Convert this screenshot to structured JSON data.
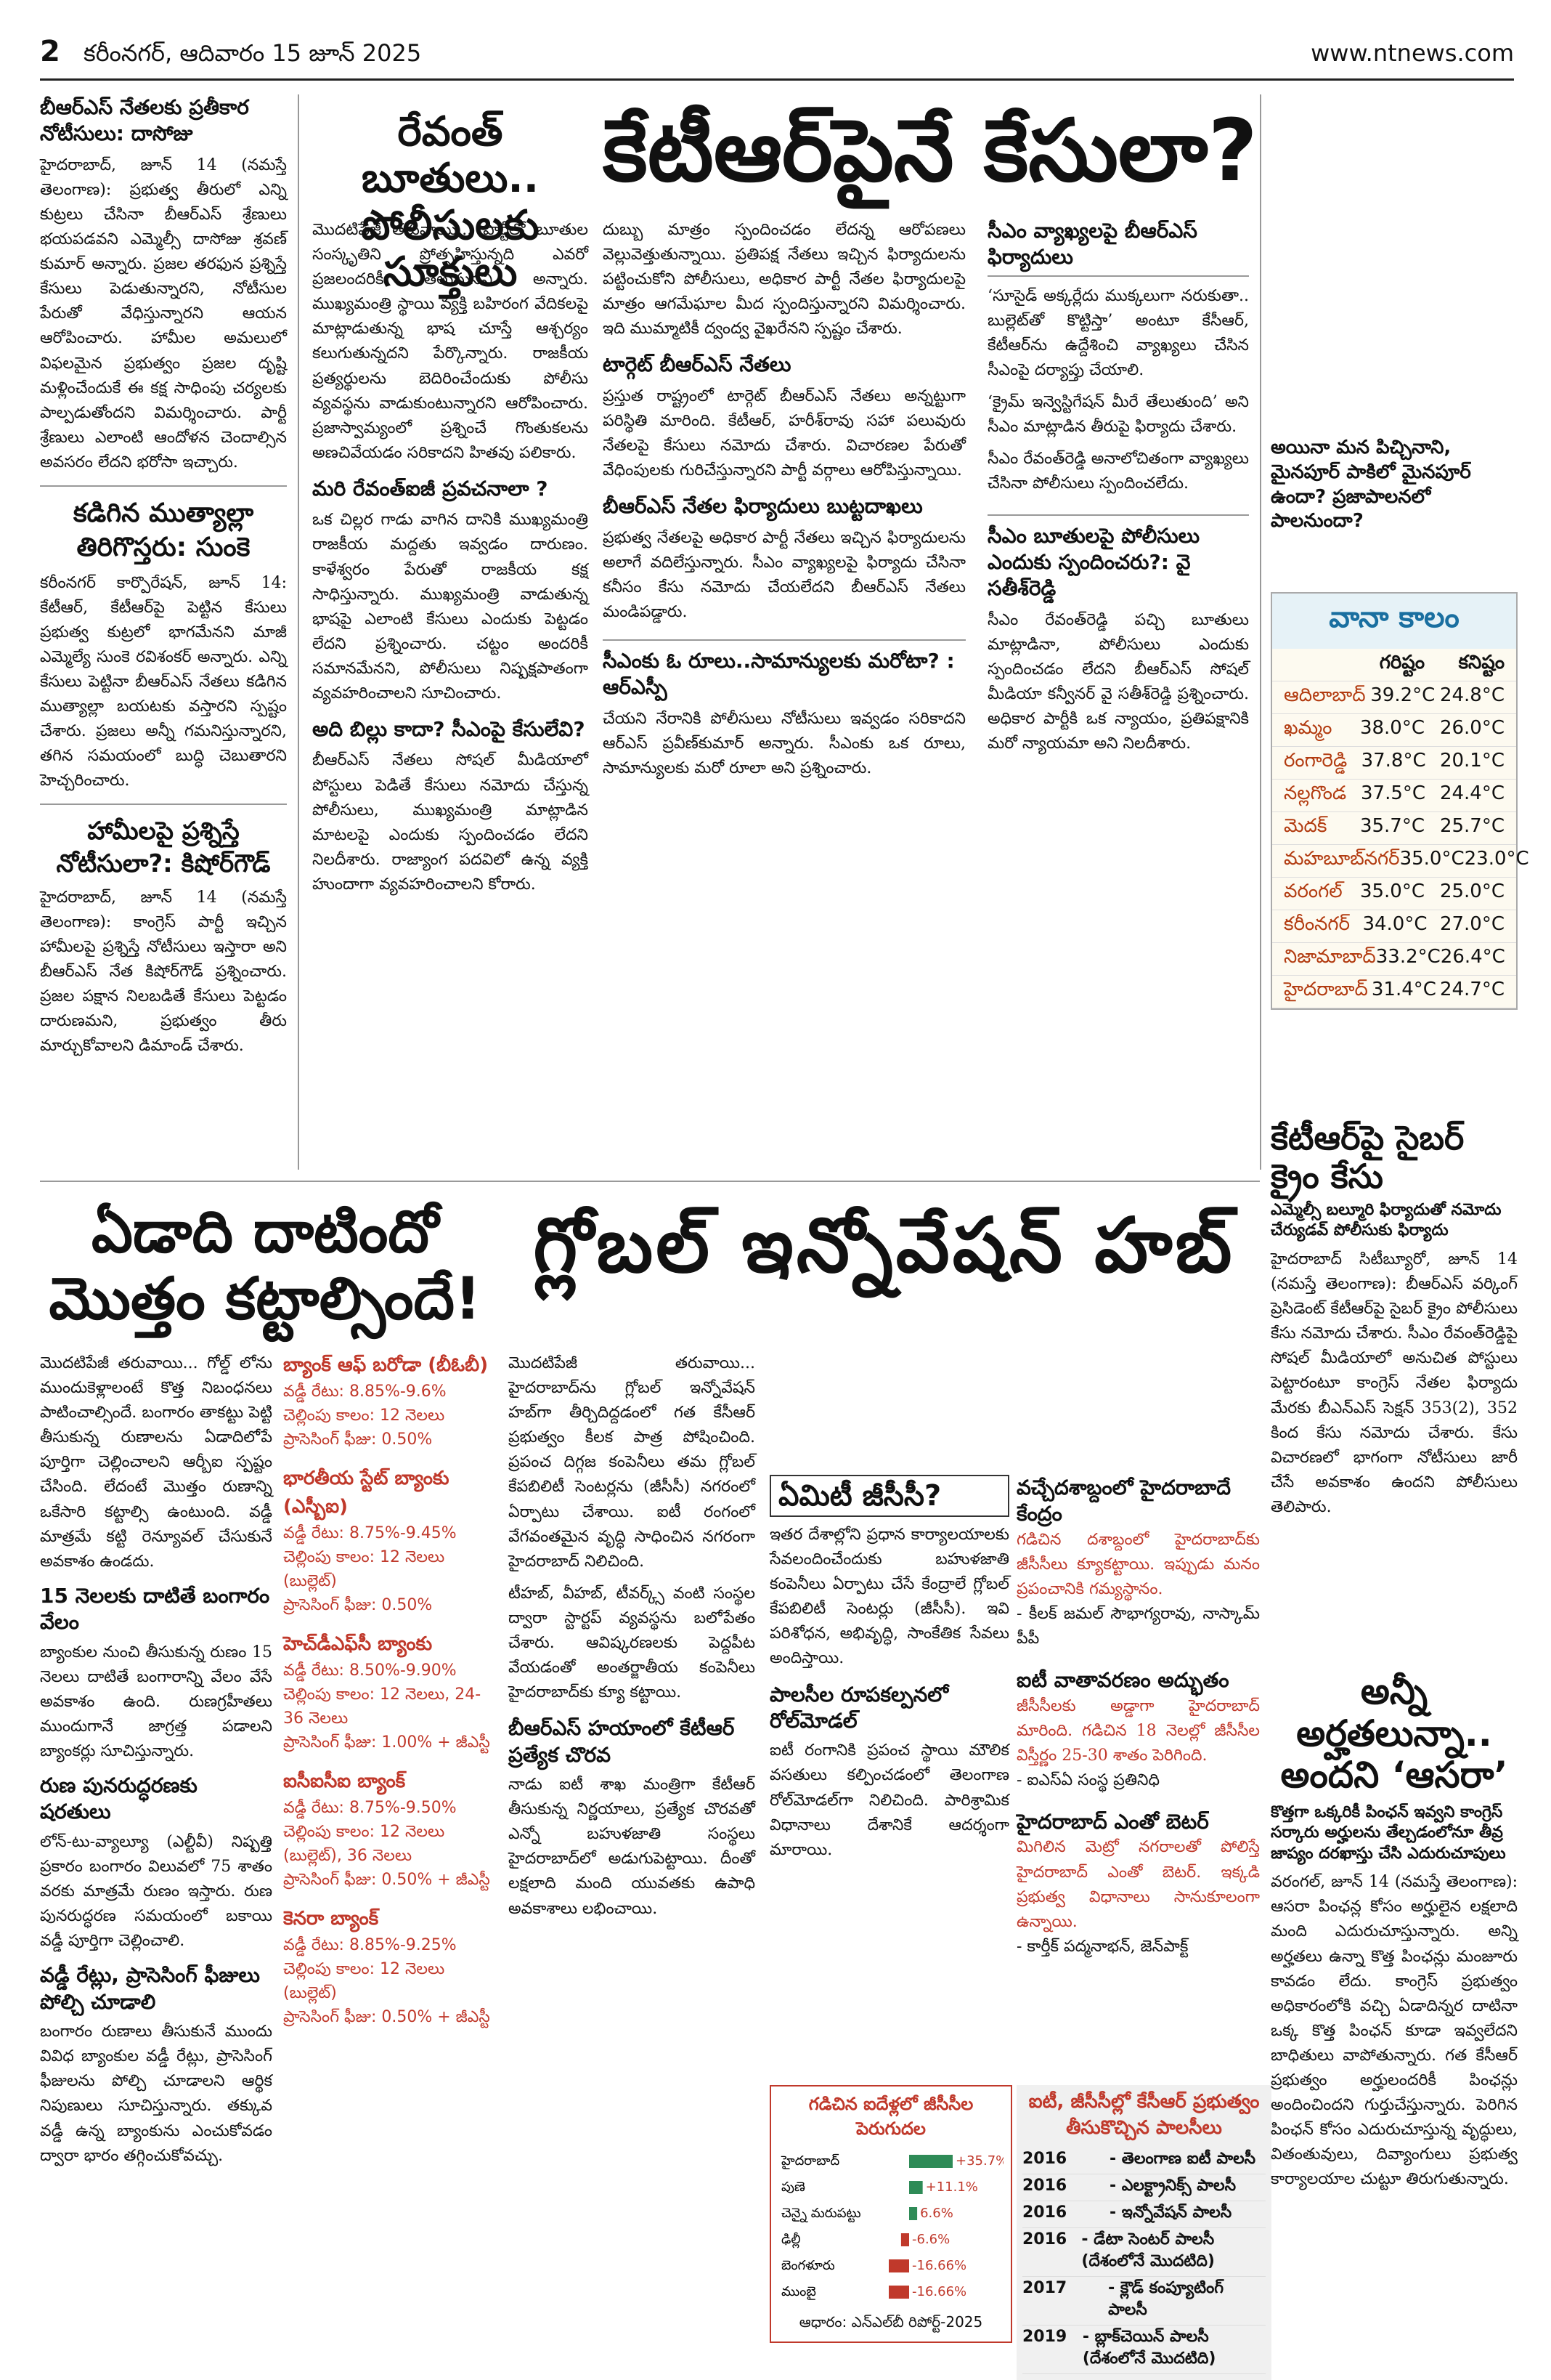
{
  "page": {
    "number": "2",
    "date_line": "కరీంనగర్, ఆదివారం 15 జూన్ 2025",
    "url": "www.ntnews.com"
  },
  "left_column": {
    "story1_title": "బీఆర్ఎస్ నేతలకు ప్రతీకార నోటీసులు: దాసోజు",
    "story1_text": "హైదరాబాద్, జూన్ 14 (నమస్తే తెలంగాణ): ప్రభుత్వ తీరులో ఎన్ని కుట్రలు చేసినా బీఆర్ఎస్ శ్రేణులు భయపడవని ఎమ్మెల్సీ దాసోజు శ్రవణ్ కుమార్ అన్నారు. ప్రజల తరఫున ప్రశ్నిస్తే కేసులు పెడుతున్నారని, నోటీసుల పేరుతో వేధిస్తున్నారని ఆయన ఆరోపించారు. హామీల అమలులో విఫలమైన ప్రభుత్వం ప్రజల దృష్టి మళ్లించేందుకే ఈ కక్ష సాధింపు చర్యలకు పాల్పడుతోందని విమర్శించారు. పార్టీ శ్రేణులు ఎలాంటి ఆందోళన చెందాల్సిన అవసరం లేదని భరోసా ఇచ్చారు.",
    "story2_title": "కడిగిన ముత్యాల్లా తిరిగొస్తరు: సుంకె",
    "story2_text": "కరీంనగర్ కార్పొరేషన్, జూన్ 14: కేటీఆర్, కేటీఆర్‌పై పెట్టిన కేసులు ప్రభుత్వ కుట్రలో భాగమేనని మాజీ ఎమ్మెల్యే సుంకె రవిశంకర్ అన్నారు. ఎన్ని కేసులు పెట్టినా బీఆర్ఎస్ నేతలు కడిగిన ముత్యాల్లా బయటకు వస్తారని స్పష్టం చేశారు. ప్రజలు అన్నీ గమనిస్తున్నారని, తగిన సమయంలో బుద్ధి చెబుతారని హెచ్చరించారు.",
    "story3_title": "హామీలపై ప్రశ్నిస్తే నోటీసులా?: కిషోర్‌గౌడ్",
    "story3_text": "హైదరాబాద్, జూన్ 14 (నమస్తే తెలంగాణ): కాంగ్రెస్ పార్టీ ఇచ్చిన హామీలపై ప్రశ్నిస్తే నోటీసులు ఇస్తారా అని బీఆర్ఎస్ నేత కిషోర్‌గౌడ్ ప్రశ్నించారు. ప్రజల పక్షాన నిలబడితే కేసులు పెట్టడం దారుణమని, ప్రభుత్వం తీరు మార్చుకోవాలని డిమాండ్ చేశారు."
  },
  "lead_story": {
    "kicker_line1": "రేవంత్ బూతులు..",
    "kicker_line2": "పోలీసులకు సూక్తులు",
    "headline": "కేటీఆర్‌పైనే కేసులా?",
    "text1": "మొదటిపేజీ తరువాయి... పార్టీలో బూతుల సంస్కృతిని ప్రోత్సహిస్తున్నది ఎవరో ప్రజలందరికీ తెలుసునని అన్నారు. ముఖ్యమంత్రి స్థాయి వ్యక్తి బహిరంగ వేదికలపై మాట్లాడుతున్న భాష చూస్తే ఆశ్చర్యం కలుగుతున్నదని పేర్కొన్నారు. రాజకీయ ప్రత్యర్థులను బెదిరించేందుకు పోలీసు వ్యవస్థను వాడుకుంటున్నారని ఆరోపించారు. ప్రజాస్వామ్యంలో ప్రశ్నించే గొంతుకలను అణచివేయడం సరికాదని హితవు పలికారు.",
    "subhead1": "మరి రేవంత్‌ఐజీ ప్రవచనాలా ?",
    "text2": "ఒక చిల్లర గాడు వాగిన దానికి ముఖ్యమంత్రి రాజకీయ మద్దతు ఇవ్వడం దారుణం. కాళేశ్వరం పేరుతో రాజకీయ కక్ష సాధిస్తున్నారు. ముఖ్యమంత్రి వాడుతున్న భాషపై ఎలాంటి కేసులు ఎందుకు పెట్టడం లేదని ప్రశ్నించారు. చట్టం అందరికీ సమానమేనని, పోలీసులు నిష్పక్షపాతంగా వ్యవహరించాలని సూచించారు.",
    "subhead2": "అది బిల్లు కాదా? సీఎంపై కేసులేవి?",
    "text3": "బీఆర్ఎస్ నేతలు సోషల్ మీడియాలో పోస్టులు పెడితే కేసులు నమోదు చేస్తున్న పోలీసులు, ముఖ్యమంత్రి మాట్లాడిన మాటలపై ఎందుకు స్పందించడం లేదని నిలదీశారు. రాజ్యాంగ పదవిలో ఉన్న వ్యక్తి హుందాగా వ్యవహరించాలని కోరారు.",
    "text4": "దుబ్బు మాత్రం స్పందించడం లేదన్న ఆరోపణలు వెల్లువెత్తుతున్నాయి. ప్రతిపక్ష నేతలు ఇచ్చిన ఫిర్యాదులను పట్టించుకోని పోలీసులు, అధికార పార్టీ నేతల ఫిర్యాదులపై మాత్రం ఆగమేఘాల మీద స్పందిస్తున్నారని విమర్శించారు. ఇది ముమ్మాటికీ ద్వంద్వ వైఖరేనని స్పష్టం చేశారు.",
    "subhead3": "టార్గెట్ బీఆర్ఎస్ నేతలు",
    "text5": "ప్రస్తుత రాష్ట్రంలో టార్గెట్ బీఆర్ఎస్ నేతలు అన్నట్టుగా పరిస్థితి మారింది. కేటీఆర్, హరీశ్‌రావు సహా పలువురు నేతలపై కేసులు నమోదు చేశారు. విచారణల పేరుతో వేధింపులకు గురిచేస్తున్నారని పార్టీ వర్గాలు ఆరోపిస్తున్నాయి.",
    "subhead4": "బీఆర్ఎస్ నేతల ఫిర్యాదులు బుట్టదాఖలు",
    "text6": "ప్రభుత్వ నేతలపై అధికార పార్టీ నేతలు ఇచ్చిన ఫిర్యాదులను అలాగే వదిలేస్తున్నారు. సీఎం వ్యాఖ్యలపై ఫిర్యాదు చేసినా కనీసం కేసు నమోదు చేయలేదని బీఆర్ఎస్ నేతలు మండిపడ్డారు."
  },
  "boxed_quotes": {
    "box1_title": "సీఎం వ్యాఖ్యలపై బీఆర్ఎస్ ఫిర్యాదులు",
    "box1_items": [
      "‘సూసైడ్ అక్కర్లేదు ముక్కలుగా నరుకుతా.. బుల్లెట్‌తో కొట్టిస్తా’ అంటూ కేసీఆర్, కేటీఆర్‌ను ఉద్దేశించి వ్యాఖ్యలు చేసిన సీఎంపై దర్యాప్తు చేయాలి.",
      "‘క్రైమ్ ఇన్వెస్టిగేషన్ మీరే తేలుతుంది’ అని సీఎం మాట్లాడిన తీరుపై ఫిర్యాదు చేశారు.",
      "సీఎం రేవంత్‌రెడ్డి అనాలోచితంగా వ్యాఖ్యలు చేసినా పోలీసులు స్పందించలేదు."
    ],
    "box2_title": "సీఎం బూతులపై పోలీసులు ఎందుకు స్పందించరు?: వై సతీశ్‌రెడ్డి",
    "box2_text": "సీఎం రేవంత్‌రెడ్డి పచ్చి బూతులు మాట్లాడినా, పోలీసులు ఎందుకు స్పందించడం లేదని బీఆర్ఎస్ సోషల్ మీడియా కన్వీనర్ వై సతీశ్‌రెడ్డి ప్రశ్నించారు. అధికార పార్టీకి ఒక న్యాయం, ప్రతిపక్షానికి మరో న్యాయమా అని నిలదీశారు.",
    "box3_title": "సీఎంకు ఓ రూలు..సామాన్యులకు మరోటా? : ఆర్ఎస్పీ",
    "box3_text": "చేయని నేరానికి పోలీసులు నోటీసులు ఇవ్వడం సరికాదని ఆర్ఎస్ ప్రవీణ్‌కుమార్ అన్నారు. సీఎంకు ఒక రూలు, సామాన్యులకు మరో రూలా అని ప్రశ్నించారు."
  },
  "side_story": {
    "question": "అయినా మన పిచ్చినాని, మైనపూర్ పాకిలో మైనపూర్ ఉందా? ప్రజాపాలనలో పాలనుందా?"
  },
  "weather": {
    "title": "వానా కాలం",
    "col_max": "గరిష్టం",
    "col_min": "కనిష్టం",
    "rows": [
      {
        "city": "ఆదిలాబాద్",
        "max": "39.2°C",
        "min": "24.8°C"
      },
      {
        "city": "ఖమ్మం",
        "max": "38.0°C",
        "min": "26.0°C"
      },
      {
        "city": "రంగారెడ్డి",
        "max": "37.8°C",
        "min": "20.1°C"
      },
      {
        "city": "నల్లగొండ",
        "max": "37.5°C",
        "min": "24.4°C"
      },
      {
        "city": "మెదక్",
        "max": "35.7°C",
        "min": "25.7°C"
      },
      {
        "city": "మహబూబ్‌నగర్",
        "max": "35.0°C",
        "min": "23.0°C"
      },
      {
        "city": "వరంగల్",
        "max": "35.0°C",
        "min": "25.0°C"
      },
      {
        "city": "కరీంనగర్",
        "max": "34.0°C",
        "min": "27.0°C"
      },
      {
        "city": "నిజామాబాద్",
        "max": "33.2°C",
        "min": "26.4°C"
      },
      {
        "city": "హైదరాబాద్",
        "max": "31.4°C",
        "min": "24.7°C"
      }
    ]
  },
  "cyber_story": {
    "headline": "కేటీఆర్‌పై సైబర్ క్రైం కేసు",
    "deck": "ఎమ్మెల్సీ బల్మూరి ఫిర్యాదుతో నమోదు చేర్యుడవ్ పోలీసుకు ఫిర్యాదు",
    "text": "హైదరాబాద్ సిటీబ్యూరో, జూన్ 14 (నమస్తే తెలంగాణ): బీఆర్ఎస్ వర్కింగ్ ప్రెసిడెంట్ కేటీఆర్‌పై సైబర్ క్రైం పోలీసులు కేసు నమోదు చేశారు. సీఎం రేవంత్‌రెడ్డిపై సోషల్ మీడియాలో అనుచిత పోస్టులు పెట్టారంటూ కాంగ్రెస్ నేతల ఫిర్యాదు మేరకు బీఎన్ఎస్ సెక్షన్ 353(2), 352 కింద కేసు నమోదు చేశారు. కేసు విచారణలో భాగంగా నోటీసులు జారీ చేసే అవకాశం ఉందని పోలీసులు తెలిపారు."
  },
  "aasara_story": {
    "headline_line1": "అన్నీ అర్హతలున్నా..",
    "headline_line2": "అందని ‘ఆసరా’",
    "deck": "కొత్తగా ఒక్కరికీ పింఛన్ ఇవ్వని కాంగ్రెస్ సర్కారు అర్హులను తేల్చడంలోనూ తీవ్ర జాప్యం దరఖాస్తు చేసి ఎదురుచూపులు",
    "text": "వరంగల్, జూన్ 14 (నమస్తే తెలంగాణ): ఆసరా పింఛన్ల కోసం అర్హులైన లక్షలాది మంది ఎదురుచూస్తున్నారు. అన్ని అర్హతలు ఉన్నా కొత్త పింఛన్లు మంజూరు కావడం లేదు. కాంగ్రెస్ ప్రభుత్వం అధికారంలోకి వచ్చి ఏడాదిన్నర దాటినా ఒక్క కొత్త పింఛన్ కూడా ఇవ్వలేదని బాధితులు వాపోతున్నారు. గత కేసీఆర్ ప్రభుత్వం అర్హులందరికీ పింఛన్లు అందించిందని గుర్తుచేస్తున్నారు. పెరిగిన పింఛన్ కోసం ఎదురుచూస్తున్న వృద్ధులు, వితంతువులు, దివ్యాంగులు ప్రభుత్వ కార్యాలయాల చుట్టూ తిరుగుతున్నారు."
  },
  "loan_story": {
    "headline_line1": "ఏడాది దాటిందో",
    "headline_line2": "మొత్తం కట్టాల్సిందే!",
    "text": "మొదటిపేజీ తరువాయి... గోల్డ్ లోను ముందుకెళ్లాలంటే కొత్త నిబంధనలు పాటించాల్సిందే. బంగారం తాకట్టు పెట్టి తీసుకున్న రుణాలను ఏడాదిలోపే పూర్తిగా చెల్లించాలని ఆర్బీఐ స్పష్టం చేసింది. లేదంటే మొత్తం రుణాన్ని ఒకేసారి కట్టాల్సి ఉంటుంది. వడ్డీ మాత్రమే కట్టి రెన్యూవల్ చేసుకునే అవకాశం ఉండదు.",
    "subhead1": "15 నెలలకు దాటితే బంగారం వేలం",
    "text2": "బ్యాంకుల నుంచి తీసుకున్న రుణం 15 నెలలు దాటితే బంగారాన్ని వేలం వేసే అవకాశం ఉంది. రుణగ్రహీతలు ముందుగానే జాగ్రత్త పడాలని బ్యాంకర్లు సూచిస్తున్నారు.",
    "subhead2": "రుణ పునరుద్ధరణకు షరతులు",
    "text3": "లోన్-టు-వ్యాల్యూ (ఎల్టీవీ) నిష్పత్తి ప్రకారం బంగారం విలువలో 75 శాతం వరకు మాత్రమే రుణం ఇస్తారు. రుణ పునరుద్ధరణ సమయంలో బకాయి వడ్డీ పూర్తిగా చెల్లించాలి.",
    "subhead3": "వడ్డీ రేట్లు, ప్రాసెసింగ్ ఫీజులు పోల్చి చూడాలి",
    "text4": "బంగారం రుణాలు తీసుకునే ముందు వివిధ బ్యాంకుల వడ్డీ రేట్లు, ప్రాసెసింగ్ ఫీజులను పోల్చి చూడాలని ఆర్థిక నిపుణులు సూచిస్తున్నారు. తక్కువ వడ్డీ ఉన్న బ్యాంకును ఎంచుకోవడం ద్వారా భారం తగ్గించుకోవచ్చు."
  },
  "bank_rates": [
    {
      "bank": "బ్యాంక్ ఆఫ్ బరోడా (బీఓబీ)",
      "rate": "వడ్డీ రేటు: 8.85%-9.6%",
      "tenure": "చెల్లింపు కాలం: 12 నెలలు",
      "fee": "ప్రాసెసింగ్ ఫీజు: 0.50%"
    },
    {
      "bank": "భారతీయ స్టేట్ బ్యాంకు (ఎస్బీఐ)",
      "rate": "వడ్డీ రేటు: 8.75%-9.45%",
      "tenure": "చెల్లింపు కాలం: 12 నెలలు (బుల్లెట్)",
      "fee": "ప్రాసెసింగ్ ఫీజు: 0.50%"
    },
    {
      "bank": "హెచ్‌డీఎఫ్‌సీ బ్యాంకు",
      "rate": "వడ్డీ రేటు: 8.50%-9.90%",
      "tenure": "చెల్లింపు కాలం: 12 నెలలు, 24-36 నెలలు",
      "fee": "ప్రాసెసింగ్ ఫీజు: 1.00% + జీఎస్టీ"
    },
    {
      "bank": "ఐసీఐసీఐ బ్యాంక్",
      "rate": "వడ్డీ రేటు: 8.75%-9.50%",
      "tenure": "చెల్లింపు కాలం: 12 నెలలు (బుల్లెట్), 36 నెలలు",
      "fee": "ప్రాసెసింగ్ ఫీజు: 0.50% + జీఎస్టీ"
    },
    {
      "bank": "కెనరా బ్యాంక్",
      "rate": "వడ్డీ రేటు: 8.85%-9.25%",
      "tenure": "చెల్లింపు కాలం: 12 నెలలు (బుల్లెట్)",
      "fee": "ప్రాసెసింగ్ ఫీజు: 0.50% + జీఎస్టీ"
    }
  ],
  "hub_story": {
    "headline": "గ్లోబల్ ఇన్నోవేషన్ హబ్",
    "text1": "మొదటిపేజీ తరువాయి... హైదరాబాద్‌ను గ్లోబల్ ఇన్నోవేషన్ హబ్‌గా తీర్చిదిద్దడంలో గత కేసీఆర్ ప్రభుత్వం కీలక పాత్ర పోషించింది. ప్రపంచ దిగ్గజ కంపెనీలు తమ గ్లోబల్ కేపబిలిటీ సెంటర్లను (జీసీసీ) నగరంలో ఏర్పాటు చేశాయి. ఐటీ రంగంలో వేగవంతమైన వృద్ధి సాధించిన నగరంగా హైదరాబాద్ నిలిచింది.",
    "text2": "టీహబ్, వీహబ్, టీవర్క్స్ వంటి సంస్థల ద్వారా స్టార్టప్ వ్యవస్థను బలోపేతం చేశారు. ఆవిష్కరణలకు పెద్దపీట వేయడంతో అంతర్జాతీయ కంపెనీలు హైదరాబాద్‌కు క్యూ కట్టాయి.",
    "subhead": "బీఆర్ఎస్ హయాంలో కేటీఆర్ ప్రత్యేక చొరవ",
    "text3": "నాడు ఐటీ శాఖ మంత్రిగా కేటీఆర్ తీసుకున్న నిర్ణయాలు, ప్రత్యేక చొరవతో ఎన్నో బహుళజాతి సంస్థలు హైదరాబాద్‌లో అడుగుపెట్టాయి. దీంతో లక్షలాది మంది యువతకు ఉపాధి అవకాశాలు లభించాయి."
  },
  "gcc_box": {
    "title": "ఏమిటీ జీసీసీ?",
    "text": "ఇతర దేశాల్లోని ప్రధాన కార్యాలయాలకు సేవలందించేందుకు బహుళజాతి కంపెనీలు ఏర్పాటు చేసే కేంద్రాలే గ్లోబల్ కేపబిలిటీ సెంటర్లు (జీసీసీ). ఇవి పరిశోధన, అభివృద్ధి, సాంకేతిక సేవలు అందిస్తాయి.",
    "subhead": "పాలసీల రూపకల్పనలో రోల్‌మోడల్",
    "text2": "ఐటీ రంగానికి ప్రపంచ స్థాయి మౌలిక వసతులు కల్పించడంలో తెలంగాణ రోల్‌మోడల్‌గా నిలిచింది. పారిశ్రామిక విధానాలు దేశానికే ఆదర్శంగా మారాయి."
  },
  "quotes": [
    {
      "title": "వచ్చేదశాబ్దంలో హైదరాబాదే కేంద్రం",
      "text": "గడిచిన దశాబ్దంలో హైదరాబాద్‌కు జీసీసీలు క్యూకట్టాయి. ఇప్పుడు మనం ప్రపంచానికి గమ్యస్థానం.",
      "source": "- కీలక్ జమల్ సౌభాగ్యరావు, నాస్కామ్ పీపీ"
    },
    {
      "title": "ఐటీ వాతావరణం అద్భుతం",
      "text": "జీసీసీలకు అడ్డాగా హైదరాబాద్ మారింది. గడిచిన 18 నెలల్లో జీసీసీల విస్తీర్ణం 25-30 శాతం పెరిగింది.",
      "source": "- ఐఎస్ఏ సంస్థ ప్రతినిధి"
    },
    {
      "title": "హైదరాబాద్ ఎంతో బెటర్",
      "text": "మిగిలిన మెట్రో నగరాలతో పోలిస్తే హైదరాబాద్ ఎంతో బెటర్. ఇక్కడి ప్రభుత్వ విధానాలు సానుకూలంగా ఉన్నాయి.",
      "source": "- కార్తీక్ పద్మనాభన్, జెన్‌పాక్ట్"
    }
  ],
  "growth_chart": {
    "title": "గడిచిన ఐదేళ్లలో జీసీసీల పెరుగుదల",
    "source": "ఆధారం: ఎన్ఎల్‌బీ రిపోర్ట్-2025"
  },
  "chart_data": {
    "type": "bar",
    "title": "గడిచిన ఐదేళ్లలో జీసీసీల పెరుగుదల",
    "categories": [
      "హైదరాబాద్",
      "పుణె",
      "చెన్నై మరుపట్టు",
      "ఢిల్లీ",
      "బెంగళూరు",
      "ముంబై"
    ],
    "values": [
      35.7,
      11.1,
      6.6,
      -6.6,
      -16.66,
      -16.66
    ],
    "labels": [
      "+35.7%",
      "+11.1%",
      "6.6%",
      "-6.6%",
      "-16.66%",
      "-16.66%"
    ],
    "xlabel": "",
    "ylabel": ""
  },
  "timeline": {
    "title": "ఐటీ, జీసీసీల్లో కేసీఆర్ ప్రభుత్వం తీసుకొచ్చిన పాలసీలు",
    "rows": [
      {
        "year": "2016",
        "text": "- తెలంగాణ ఐటీ పాలసీ"
      },
      {
        "year": "2016",
        "text": "- ఎలక్ట్రానిక్స్ పాలసీ"
      },
      {
        "year": "2016",
        "text": "- ఇన్నోవేషన్ పాలసీ"
      },
      {
        "year": "2016",
        "text": "- డేటా సెంటర్ పాలసీ (దేశంలోనే మొదటిది)"
      },
      {
        "year": "2017",
        "text": "- క్లౌడ్ కంప్యూటింగ్ పాలసీ"
      },
      {
        "year": "2019",
        "text": "- బ్లాక్‌చెయిన్ పాలసీ (దేశంలోనే మొదటిది)"
      }
    ]
  }
}
